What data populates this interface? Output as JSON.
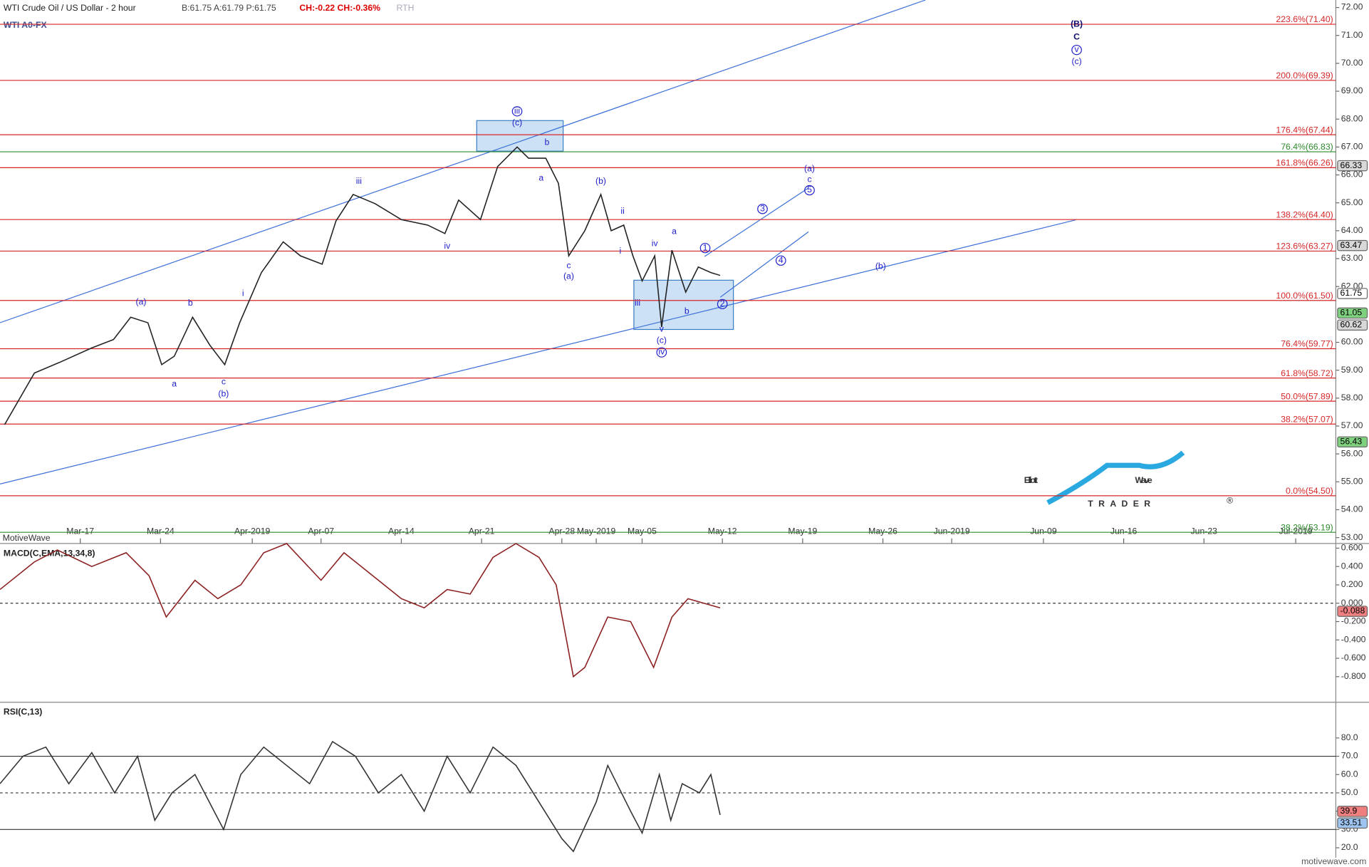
{
  "chart_data": [
    {
      "type": "line",
      "title": "WTI Crude Oil / US Dollar - 2 hour",
      "quote": "B:61.75 A:61.79 P:61.75",
      "change": "CH:-0.22 CH:-0.36%",
      "session": "RTH",
      "symbol": "WTI A0-FX",
      "source": "MotiveWave",
      "watermark": "motivewave.com",
      "logo": {
        "word1": "Elliott",
        "word2": "Wave",
        "word3": "TRADER",
        "mark": "®"
      },
      "color": "#222222",
      "x": [
        0.4,
        3.0,
        5.3,
        8.0,
        9.9,
        11.4,
        12.9,
        14.1,
        15.2,
        16.8,
        18.3,
        19.6,
        20.9,
        22.8,
        24.7,
        26.2,
        28.1,
        29.3,
        30.8,
        32.7,
        35.0,
        37.3,
        38.8,
        40.0,
        41.9,
        43.4,
        45.1,
        46.1,
        47.6,
        48.7,
        49.6,
        51.0,
        52.4,
        53.3,
        54.4,
        55.2,
        56.0,
        57.1,
        57.7,
        58.6,
        59.8,
        60.9,
        62.0,
        62.8
      ],
      "values": [
        57.05,
        58.9,
        59.3,
        59.8,
        60.1,
        60.9,
        60.7,
        59.2,
        59.5,
        60.9,
        59.9,
        59.2,
        60.7,
        62.5,
        63.6,
        63.1,
        62.8,
        64.35,
        65.3,
        64.97,
        64.4,
        64.2,
        63.9,
        65.1,
        64.4,
        66.3,
        67.0,
        66.6,
        66.6,
        65.7,
        63.1,
        64.0,
        65.3,
        64.0,
        64.2,
        63.1,
        62.2,
        63.1,
        60.55,
        63.3,
        61.8,
        62.7,
        62.5,
        62.4
      ],
      "xlim": [
        0,
        116.5
      ],
      "xticks": [
        {
          "value": 7,
          "label": "Mar-17"
        },
        {
          "value": 14,
          "label": "Mar-24"
        },
        {
          "value": 22,
          "label": "Apr-2019"
        },
        {
          "value": 28,
          "label": "Apr-07"
        },
        {
          "value": 35,
          "label": "Apr-14"
        },
        {
          "value": 42,
          "label": "Apr-21"
        },
        {
          "value": 49,
          "label": "Apr-28"
        },
        {
          "value": 52,
          "label": "May-2019"
        },
        {
          "value": 56,
          "label": "May-05"
        },
        {
          "value": 63,
          "label": "May-12"
        },
        {
          "value": 70,
          "label": "May-19"
        },
        {
          "value": 77,
          "label": "May-26"
        },
        {
          "value": 83,
          "label": "Jun-2019"
        },
        {
          "value": 91,
          "label": "Jun-09"
        },
        {
          "value": 98,
          "label": "Jun-16"
        },
        {
          "value": 105,
          "label": "Jun-23"
        },
        {
          "value": 113,
          "label": "Jul-2019"
        }
      ],
      "ylim": [
        52.79,
        72.27
      ],
      "yticks": [
        {
          "value": 72,
          "label": "72.00"
        },
        {
          "value": 71,
          "label": "71.00"
        },
        {
          "value": 70,
          "label": "70.00"
        },
        {
          "value": 69,
          "label": "69.00"
        },
        {
          "value": 68,
          "label": "68.00"
        },
        {
          "value": 67,
          "label": "67.00"
        },
        {
          "value": 66,
          "label": "66.00"
        },
        {
          "value": 65,
          "label": "65.00"
        },
        {
          "value": 64,
          "label": "64.00"
        },
        {
          "value": 63,
          "label": "63.00"
        },
        {
          "value": 62,
          "label": "62.00"
        },
        {
          "value": 60,
          "label": "60.00"
        },
        {
          "value": 59,
          "label": "59.00"
        },
        {
          "value": 58,
          "label": "58.00"
        },
        {
          "value": 57,
          "label": "57.00"
        },
        {
          "value": 56,
          "label": "56.00"
        },
        {
          "value": 55,
          "label": "55.00"
        },
        {
          "value": 54,
          "label": "54.00"
        },
        {
          "value": 53,
          "label": "53.00"
        }
      ],
      "levels": [
        {
          "label": "223.6%(71.40)",
          "value": 71.4,
          "color": "#d62728"
        },
        {
          "label": "200.0%(69.39)",
          "value": 69.39,
          "color": "#d62728"
        },
        {
          "label": "176.4%(67.44)",
          "value": 67.44,
          "color": "#d62728"
        },
        {
          "label": "76.4%(66.83)",
          "value": 66.83,
          "color": "#2e8b2e"
        },
        {
          "label": "161.8%(66.26)",
          "value": 66.26,
          "color": "#d62728"
        },
        {
          "label": "138.2%(64.40)",
          "value": 64.4,
          "color": "#d62728"
        },
        {
          "label": "123.6%(63.27)",
          "value": 63.27,
          "color": "#d62728"
        },
        {
          "label": "100.0%(61.50)",
          "value": 61.5,
          "color": "#d62728"
        },
        {
          "label": "76.4%(59.77)",
          "value": 59.77,
          "color": "#d62728"
        },
        {
          "label": "61.8%(58.72)",
          "value": 58.72,
          "color": "#d62728"
        },
        {
          "label": "50.0%(57.89)",
          "value": 57.89,
          "color": "#d62728"
        },
        {
          "label": "38.2%(57.07)",
          "value": 57.07,
          "color": "#d62728"
        },
        {
          "label": "0.0%(54.50)",
          "value": 54.5,
          "color": "#d62728"
        },
        {
          "label": "38.2%(53.19)",
          "value": 53.19,
          "color": "#2e8b2e"
        }
      ],
      "price_tags": [
        {
          "label": "66.33",
          "value": 66.33,
          "color": "#d8d8d8"
        },
        {
          "label": "63.47",
          "value": 63.47,
          "color": "#d8d8d8"
        },
        {
          "label": "61.75",
          "value": 61.75,
          "color": "#ffffff"
        },
        {
          "label": "61.05",
          "value": 61.05,
          "color": "#7fd07f"
        },
        {
          "label": "60.62",
          "value": 60.62,
          "color": "#d8d8d8"
        },
        {
          "label": "56.43",
          "value": 56.43,
          "color": "#7fd07f"
        }
      ],
      "wave_labels": [
        {
          "label": "(a)",
          "x": 12.3,
          "y": 61.43
        },
        {
          "label": "a",
          "x": 15.2,
          "y": 58.5
        },
        {
          "label": "b",
          "x": 16.6,
          "y": 61.4
        },
        {
          "label": "c",
          "x": 19.5,
          "y": 58.57
        },
        {
          "label": "(b)",
          "x": 19.5,
          "y": 58.14
        },
        {
          "label": "i",
          "x": 21.2,
          "y": 61.74
        },
        {
          "label": "iii",
          "x": 31.3,
          "y": 65.76
        },
        {
          "label": "iv",
          "x": 39.0,
          "y": 63.44
        },
        {
          "label": "iii",
          "x": 45.1,
          "y": 68.28,
          "circled": true
        },
        {
          "label": "(c)",
          "x": 45.1,
          "y": 67.86
        },
        {
          "label": "b",
          "x": 47.7,
          "y": 67.16
        },
        {
          "label": "a",
          "x": 47.2,
          "y": 65.88
        },
        {
          "label": "c",
          "x": 49.6,
          "y": 62.74
        },
        {
          "label": "(a)",
          "x": 49.6,
          "y": 62.35
        },
        {
          "label": "(b)",
          "x": 52.4,
          "y": 65.76
        },
        {
          "label": "ii",
          "x": 54.3,
          "y": 64.69
        },
        {
          "label": "i",
          "x": 54.1,
          "y": 63.26
        },
        {
          "label": "iii",
          "x": 55.6,
          "y": 61.4
        },
        {
          "label": "iv",
          "x": 57.1,
          "y": 63.53
        },
        {
          "label": "a",
          "x": 58.8,
          "y": 63.96
        },
        {
          "label": "b",
          "x": 59.9,
          "y": 61.1
        },
        {
          "label": "v",
          "x": 57.7,
          "y": 60.46
        },
        {
          "label": "(c)",
          "x": 57.7,
          "y": 60.06
        },
        {
          "label": "iv",
          "x": 57.7,
          "y": 59.64,
          "circled": true
        },
        {
          "label": "1",
          "x": 61.5,
          "y": 63.38,
          "circled": true
        },
        {
          "label": "2",
          "x": 63.0,
          "y": 61.37,
          "circled": true
        },
        {
          "label": "3",
          "x": 66.5,
          "y": 64.78,
          "circled": true
        },
        {
          "label": "4",
          "x": 68.1,
          "y": 62.93,
          "circled": true
        },
        {
          "label": "5",
          "x": 70.6,
          "y": 65.45,
          "circled": true
        },
        {
          "label": "c",
          "x": 70.6,
          "y": 65.82
        },
        {
          "label": "(a)",
          "x": 70.6,
          "y": 66.21
        },
        {
          "label": "(b)",
          "x": 76.8,
          "y": 62.71
        },
        {
          "label": "(B)",
          "x": 93.9,
          "y": 71.39,
          "bold": true
        },
        {
          "label": "C",
          "x": 93.9,
          "y": 70.93,
          "bold": true
        },
        {
          "label": "v",
          "x": 93.9,
          "y": 70.48,
          "circled": true
        },
        {
          "label": "(c)",
          "x": 93.9,
          "y": 70.05
        }
      ]
    },
    {
      "type": "line",
      "title": "MACD(C,EMA,13,34,8)",
      "color": "#8b2020",
      "x": [
        0,
        3,
        5,
        8,
        11,
        13,
        14.5,
        17,
        19,
        21,
        23,
        25,
        28,
        30,
        32,
        35,
        37,
        39,
        41,
        43,
        45,
        47,
        48.5,
        50,
        51,
        53,
        55,
        57,
        58.6,
        60,
        62.8
      ],
      "values": [
        0.15,
        0.45,
        0.58,
        0.4,
        0.55,
        0.3,
        -0.15,
        0.25,
        0.05,
        0.2,
        0.55,
        0.65,
        0.25,
        0.55,
        0.35,
        0.05,
        -0.05,
        0.15,
        0.1,
        0.5,
        0.65,
        0.5,
        0.2,
        -0.8,
        -0.7,
        -0.15,
        -0.2,
        -0.7,
        -0.15,
        0.05,
        -0.05
      ],
      "xlim": [
        0,
        116.5
      ],
      "ylim": [
        -1.079,
        0.651
      ],
      "yticks": [
        {
          "value": 0.6,
          "label": "0.600"
        },
        {
          "value": 0.4,
          "label": "0.400"
        },
        {
          "value": 0.2,
          "label": "0.200"
        },
        {
          "value": 0,
          "label": "0.000"
        },
        {
          "value": -0.2,
          "label": "-0.200"
        },
        {
          "value": -0.4,
          "label": "-0.400"
        },
        {
          "value": -0.6,
          "label": "-0.600"
        },
        {
          "value": -0.8,
          "label": "-0.800"
        }
      ],
      "price_tags": [
        {
          "label": "-0.088",
          "value": -0.088,
          "color": "#f08080"
        }
      ]
    },
    {
      "type": "line",
      "title": "RSI(C,13)",
      "color": "#333333",
      "x": [
        0,
        2,
        4,
        6,
        8,
        10,
        12,
        13.5,
        15,
        17,
        19.5,
        21,
        23,
        25,
        27,
        29,
        31,
        33,
        35,
        37,
        39,
        41,
        43,
        45,
        47,
        49,
        50,
        52,
        53,
        55,
        56,
        57.5,
        58.5,
        59.5,
        61,
        62,
        62.8
      ],
      "values": [
        55,
        70,
        75,
        55,
        72,
        50,
        70,
        35,
        50,
        60,
        30,
        60,
        75,
        65,
        55,
        78,
        70,
        50,
        60,
        40,
        70,
        50,
        75,
        65,
        45,
        25,
        18,
        45,
        65,
        40,
        28,
        60,
        35,
        55,
        50,
        60,
        38
      ],
      "xlim": [
        0,
        116.5
      ],
      "ylim": [
        14.6,
        99.5
      ],
      "yticks": [
        {
          "value": 80,
          "label": "80.0"
        },
        {
          "value": 70,
          "label": "70.0"
        },
        {
          "value": 60,
          "label": "60.0"
        },
        {
          "value": 50,
          "label": "50.0"
        },
        {
          "value": 40,
          "label": "40.0"
        },
        {
          "value": 30,
          "label": "30.0"
        },
        {
          "value": 20,
          "label": "20.0"
        }
      ],
      "price_tags": [
        {
          "label": "39.9",
          "value": 39.9,
          "color": "#f08080"
        },
        {
          "label": "33.51",
          "value": 33.51,
          "color": "#9ec5f0"
        }
      ]
    }
  ]
}
